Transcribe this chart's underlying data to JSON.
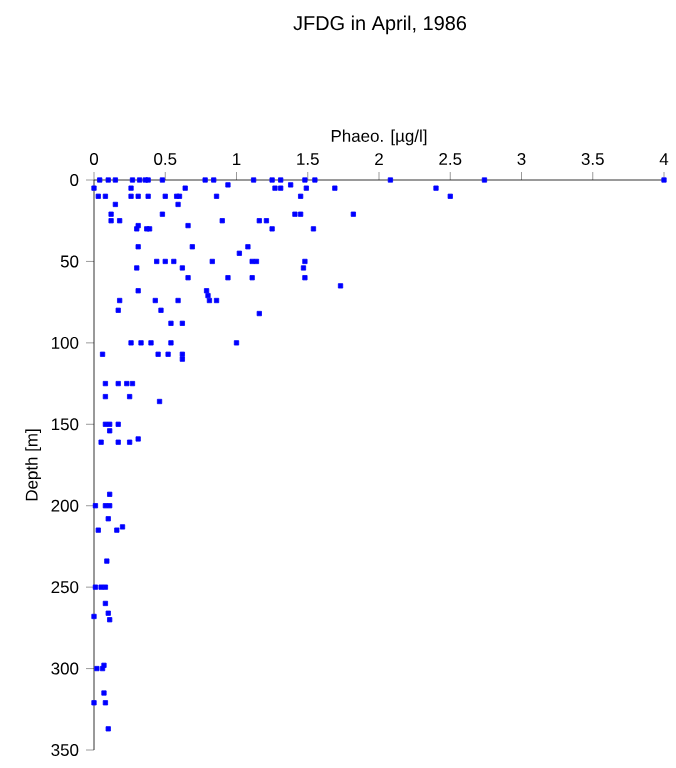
{
  "chart_data": {
    "type": "scatter",
    "title": "JFDG in April, 1986",
    "xlabel": "Phaeo. [µg/l]",
    "ylabel": "Depth [m]",
    "xlim": [
      0,
      4
    ],
    "xticks": [
      0,
      0.5,
      1,
      1.5,
      2,
      2.5,
      3,
      3.5,
      4
    ],
    "ylim": [
      350,
      0
    ],
    "yticks": [
      0,
      50,
      100,
      150,
      200,
      250,
      300,
      350
    ],
    "marker": "square",
    "series": [
      {
        "color": "#0000ff",
        "x": [
          0.04,
          0.1,
          0.15,
          0.27,
          0.32,
          0.36,
          0.38,
          0.48,
          0.78,
          0.84,
          1.12,
          1.25,
          1.31,
          1.48,
          1.55,
          2.08,
          2.74,
          4.0,
          0.94,
          1.38,
          0,
          0.26,
          0.64,
          1.27,
          1.31,
          1.49,
          1.69,
          2.4,
          0.03,
          0.08,
          0.26,
          0.31,
          0.38,
          0.5,
          0.58,
          0.6,
          0.86,
          1.45,
          2.5,
          0.15,
          0.59,
          0.12,
          0.48,
          1.41,
          1.45,
          1.82,
          0.12,
          0.18,
          0.9,
          1.16,
          1.21,
          0.31,
          0.66,
          0.3,
          0.37,
          0.39,
          1.25,
          1.54,
          0.31,
          0.69,
          1.08,
          1.02,
          0.44,
          0.5,
          0.56,
          0.83,
          1.11,
          1.14,
          1.48,
          0.3,
          0.62,
          1.47,
          0.66,
          0.94,
          1.11,
          1.48,
          1.73,
          0.31,
          0.79,
          0.8,
          0.18,
          0.43,
          0.59,
          0.81,
          0.86,
          0.17,
          0.47,
          1.16,
          0.54,
          0.62,
          0.26,
          0.33,
          0.4,
          0.54,
          1.0,
          0.06,
          0.45,
          0.52,
          0.62,
          0.62,
          0.08,
          0.17,
          0.23,
          0.27,
          0.08,
          0.25,
          0.46,
          0.08,
          0.11,
          0.17,
          0.11,
          0.31,
          0.05,
          0.17,
          0.25,
          0.11,
          0.01,
          0.08,
          0.11,
          0.1,
          0.2,
          0.03,
          0.16,
          0.09,
          0.01,
          0.05,
          0.08,
          0.08,
          0.1,
          0,
          0.11,
          0.02,
          0.06,
          0.07,
          0.07,
          0,
          0.08,
          0.1
        ],
        "values": [
          0,
          0,
          0,
          0,
          0,
          0,
          0,
          0,
          0,
          0,
          0,
          0,
          0,
          0,
          0,
          0,
          0,
          0,
          3,
          3,
          5,
          5,
          5,
          5,
          5,
          5,
          5,
          5,
          10,
          10,
          10,
          10,
          10,
          10,
          10,
          10,
          10,
          10,
          10,
          15,
          15,
          21,
          21,
          21,
          21,
          21,
          25,
          25,
          25,
          25,
          25,
          28,
          28,
          30,
          30,
          30,
          30,
          30,
          41,
          41,
          41,
          45,
          50,
          50,
          50,
          50,
          50,
          50,
          50,
          54,
          54,
          54,
          60,
          60,
          60,
          60,
          65,
          68,
          68,
          71,
          74,
          74,
          74,
          74,
          74,
          80,
          80,
          82,
          88,
          88,
          100,
          100,
          100,
          100,
          100,
          107,
          107,
          107,
          107,
          110,
          125,
          125,
          125,
          125,
          133,
          133,
          136,
          150,
          150,
          150,
          154,
          159,
          161,
          161,
          161,
          193,
          200,
          200,
          200,
          208,
          213,
          215,
          215,
          234,
          250,
          250,
          250,
          260,
          266,
          268,
          270,
          300,
          300,
          298,
          315,
          321,
          321,
          337
        ]
      }
    ]
  }
}
